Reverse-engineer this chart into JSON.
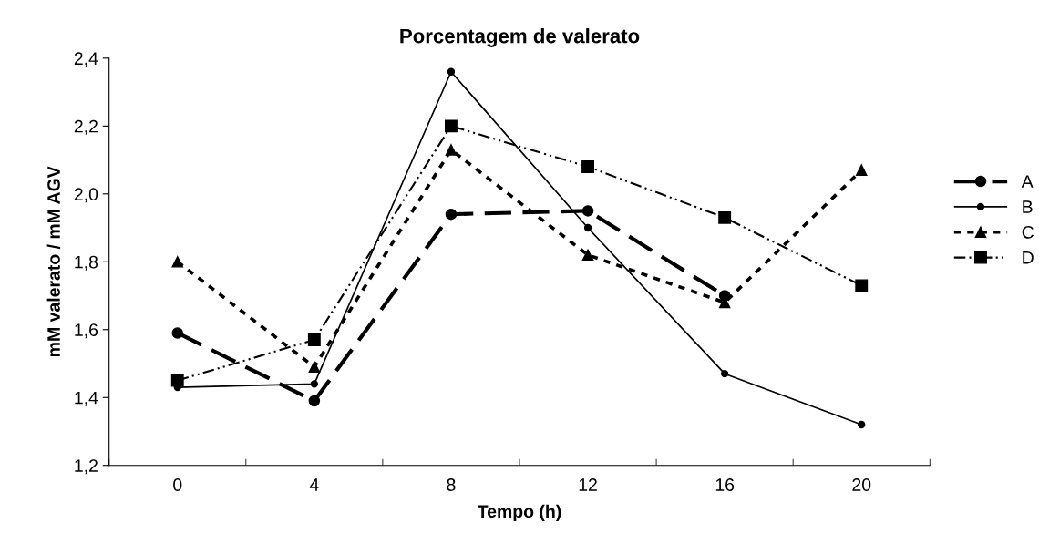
{
  "chart_data": {
    "type": "line",
    "title": "Porcentagem de valerato",
    "xlabel": "Tempo (h)",
    "ylabel": "mM valerato / mM AGV",
    "categories": [
      "0",
      "4",
      "8",
      "12",
      "16",
      "20"
    ],
    "series": [
      {
        "name": "A",
        "color": "#000000",
        "marker": "circle",
        "line_style": "dashed",
        "values": [
          1.59,
          1.39,
          1.94,
          1.95,
          1.7,
          null
        ]
      },
      {
        "name": "B",
        "color": "#000000",
        "marker": "circle",
        "line_style": "solid",
        "values": [
          1.43,
          1.44,
          2.36,
          1.9,
          1.47,
          1.32
        ]
      },
      {
        "name": "C",
        "color": "#000000",
        "marker": "triangle",
        "line_style": "dotted",
        "values": [
          1.8,
          1.49,
          2.13,
          1.82,
          1.68,
          2.07
        ]
      },
      {
        "name": "D",
        "color": "#000000",
        "marker": "square",
        "line_style": "dashdot",
        "values": [
          1.45,
          1.57,
          2.2,
          2.08,
          1.93,
          1.73
        ]
      }
    ],
    "ylim": [
      1.2,
      2.4
    ],
    "yticks": [
      {
        "value": 1.2,
        "label": "1,2"
      },
      {
        "value": 1.4,
        "label": "1,4"
      },
      {
        "value": 1.6,
        "label": "1,6"
      },
      {
        "value": 1.8,
        "label": "1,8"
      },
      {
        "value": 2.0,
        "label": "2,0"
      },
      {
        "value": 2.2,
        "label": "2,2"
      },
      {
        "value": 2.4,
        "label": "2,4"
      }
    ],
    "legend": "right"
  }
}
